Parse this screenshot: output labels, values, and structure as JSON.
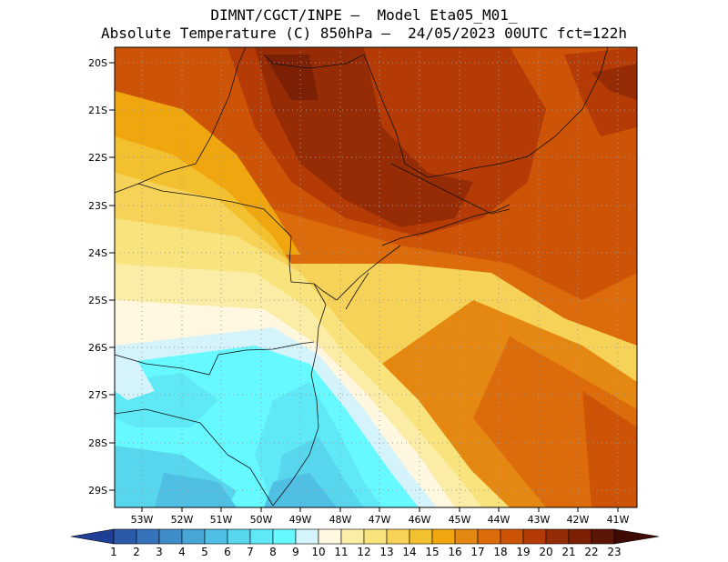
{
  "header": {
    "title_line1": "DIMNT/CGCT/INPE –  Model Eta05_M01_",
    "title_line2": "Absolute Temperature (C) 850hPa –  24/05/2023 00UTC fct=122h"
  },
  "map": {
    "lat_labels": [
      "20S",
      "21S",
      "22S",
      "23S",
      "24S",
      "25S",
      "26S",
      "27S",
      "28S",
      "29S"
    ],
    "lon_labels": [
      "53W",
      "52W",
      "51W",
      "50W",
      "49W",
      "48W",
      "47W",
      "46W",
      "45W",
      "44W",
      "43W",
      "42W",
      "41W"
    ]
  },
  "colorbar": {
    "labels": [
      "1",
      "2",
      "3",
      "4",
      "5",
      "6",
      "7",
      "8",
      "9",
      "10",
      "11",
      "12",
      "13",
      "14",
      "15",
      "16",
      "17",
      "18",
      "19",
      "20",
      "21",
      "22",
      "23"
    ],
    "colors": [
      "#1f3e96",
      "#2b5aa8",
      "#3673bb",
      "#3f8dc8",
      "#47a6d6",
      "#4fbfe3",
      "#57d6ee",
      "#5fe9f6",
      "#66f9ff",
      "#d4f3fb",
      "#fff7e0",
      "#fbeda5",
      "#f9e37c",
      "#f6d358",
      "#f3c12f",
      "#f0a70f",
      "#e58812",
      "#dc6b0b",
      "#cd5406",
      "#b43b05",
      "#962c05",
      "#7b1f05",
      "#5c1404",
      "#3f0a04"
    ]
  }
}
